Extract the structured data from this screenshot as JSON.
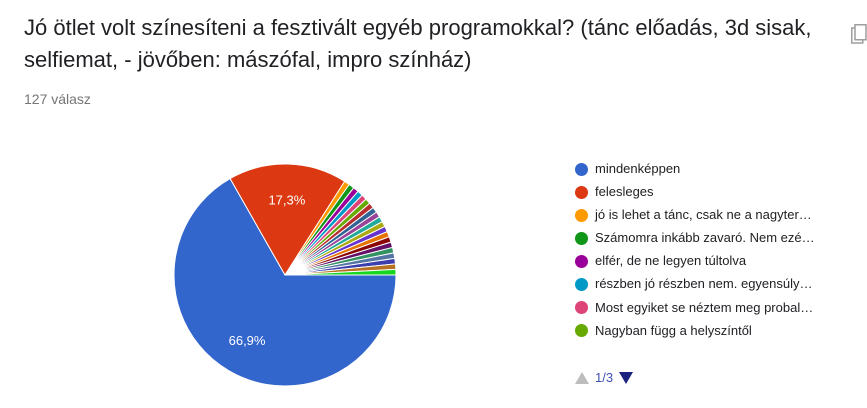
{
  "header": {
    "title": "Jó ötlet volt színesíteni a fesztivált egyéb programokkal? (tánc előadás, 3d sisak, selfiemat, - jövőben: mászófal, impro színház)",
    "response_count": "127 válasz"
  },
  "chart_data": {
    "type": "pie",
    "slices": [
      {
        "label": "mindenképpen",
        "value": 66.9,
        "color": "#3366cc",
        "data_label": "66,9%"
      },
      {
        "label": "felesleges",
        "value": 17.3,
        "color": "#dc3912",
        "data_label": "17,3%"
      },
      {
        "label": "jó is lehet a tánc, csak ne a nagyter…",
        "value": 0.8,
        "color": "#ff9900"
      },
      {
        "label": "Számomra inkább zavaró. Nem ezé…",
        "value": 0.8,
        "color": "#109618"
      },
      {
        "label": "elfér, de ne legyen túltolva",
        "value": 0.8,
        "color": "#990099"
      },
      {
        "label": "részben jó részben nem. egyensúly…",
        "value": 0.8,
        "color": "#0099c6"
      },
      {
        "label": "Most egyiket se néztem meg probal…",
        "value": 0.8,
        "color": "#dd4477"
      },
      {
        "label": "Nagyban függ a helyszíntől",
        "value": 0.8,
        "color": "#66aa00"
      },
      {
        "value": 0.8,
        "color": "#b82e2e"
      },
      {
        "value": 0.8,
        "color": "#316395"
      },
      {
        "value": 0.8,
        "color": "#994499"
      },
      {
        "value": 0.8,
        "color": "#22aa99"
      },
      {
        "value": 0.8,
        "color": "#aaaa11"
      },
      {
        "value": 0.8,
        "color": "#6633cc"
      },
      {
        "value": 0.8,
        "color": "#e67300"
      },
      {
        "value": 0.8,
        "color": "#8b0707"
      },
      {
        "value": 0.8,
        "color": "#651067"
      },
      {
        "value": 0.8,
        "color": "#329262"
      },
      {
        "value": 0.8,
        "color": "#5574a6"
      },
      {
        "value": 0.8,
        "color": "#3b3eac"
      },
      {
        "value": 0.8,
        "color": "#b77322"
      },
      {
        "value": 0.8,
        "color": "#16d620"
      }
    ],
    "legend_placement": "right"
  },
  "legend": {
    "items": [
      {
        "label": "mindenképpen",
        "color": "#3366cc"
      },
      {
        "label": "felesleges",
        "color": "#dc3912"
      },
      {
        "label": "jó is lehet a tánc, csak ne a nagyter…",
        "color": "#ff9900"
      },
      {
        "label": "Számomra inkább zavaró. Nem ezé…",
        "color": "#109618"
      },
      {
        "label": "elfér, de ne legyen túltolva",
        "color": "#990099"
      },
      {
        "label": "részben jó részben nem. egyensúly…",
        "color": "#0099c6"
      },
      {
        "label": "Most egyiket se néztem meg probal…",
        "color": "#dd4477"
      },
      {
        "label": "Nagyban függ a helyszíntől",
        "color": "#66aa00"
      }
    ],
    "pager": "1/3"
  },
  "icons": {
    "copy": "copy-icon",
    "prev": "triangle-up-icon",
    "next": "triangle-down-icon"
  }
}
